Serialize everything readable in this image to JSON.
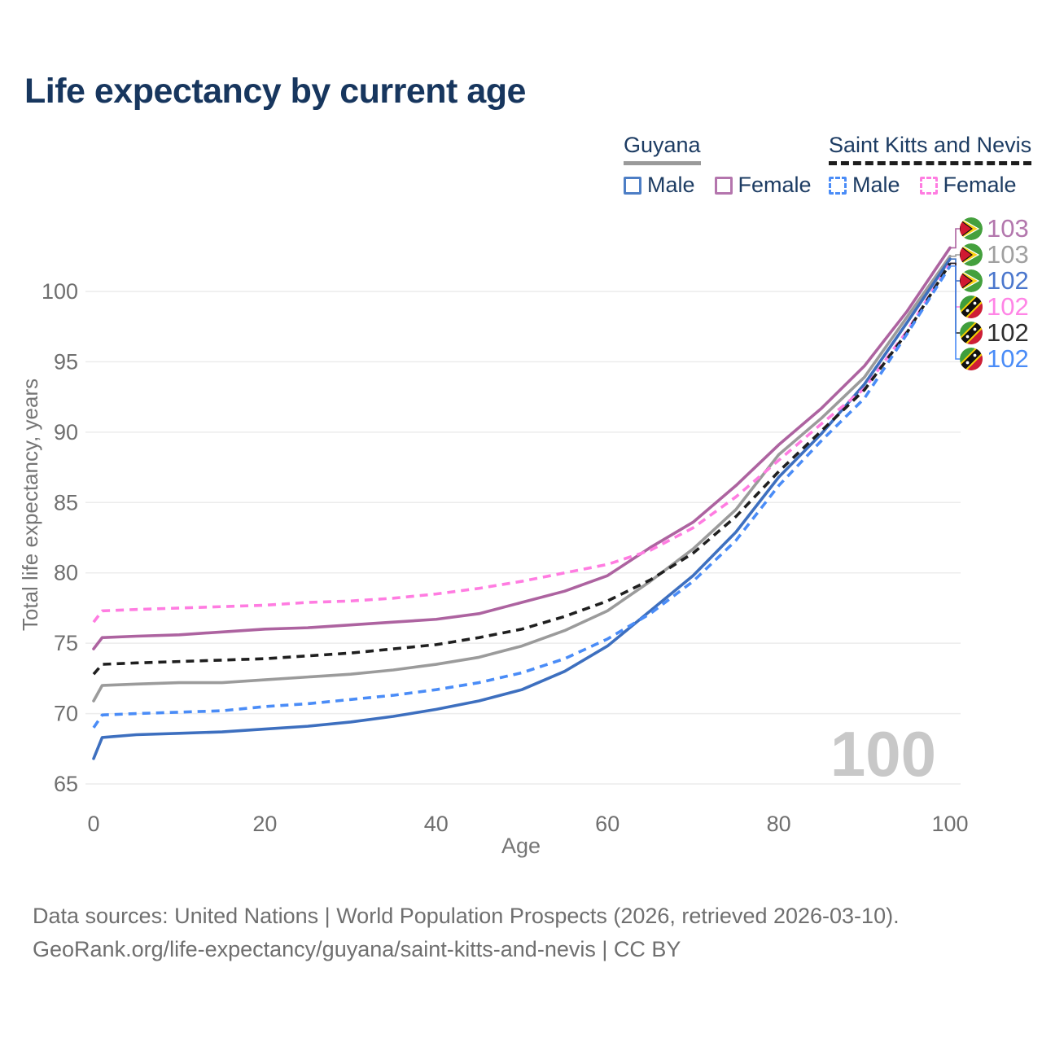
{
  "title": "Life expectancy by current age",
  "watermark": "100",
  "legend": {
    "groups": [
      {
        "label": "Guyana",
        "line_style": "solid",
        "underline_color": "#9a9a9a",
        "items": [
          {
            "label": "Male",
            "color": "#4d7ec5",
            "dash": false
          },
          {
            "label": "Female",
            "color": "#b475ad",
            "dash": false
          }
        ]
      },
      {
        "label": "Saint Kitts and Nevis",
        "line_style": "dashed",
        "underline_color": "#1d1d1d",
        "items": [
          {
            "label": "Male",
            "color": "#4a8cf7",
            "dash": true
          },
          {
            "label": "Female",
            "color": "#ff7ce1",
            "dash": true
          }
        ]
      }
    ]
  },
  "chart_data": {
    "type": "line",
    "title": "Life expectancy by current age",
    "xlabel": "Age",
    "ylabel": "Total life expectancy, years",
    "x_ticks": [
      0,
      20,
      40,
      60,
      80,
      100
    ],
    "y_ticks": [
      65,
      70,
      75,
      80,
      85,
      90,
      95,
      100
    ],
    "xlim": [
      0,
      100
    ],
    "ylim": [
      65,
      103.5
    ],
    "grid": "horizontal",
    "legend_position": "top-right",
    "x": [
      0,
      1,
      5,
      10,
      15,
      20,
      25,
      30,
      35,
      40,
      45,
      50,
      55,
      60,
      65,
      70,
      75,
      80,
      85,
      90,
      95,
      100
    ],
    "series": [
      {
        "name": "Guyana Female",
        "country": "Guyana",
        "sex": "female",
        "color": "#ad63a0",
        "dash": false,
        "flag": "guyana",
        "end_label": "103",
        "end_label_color": "#b377ad",
        "values": [
          74.6,
          75.4,
          75.5,
          75.6,
          75.8,
          76.0,
          76.1,
          76.3,
          76.5,
          76.7,
          77.1,
          77.9,
          78.7,
          79.8,
          81.8,
          83.6,
          86.2,
          89.1,
          91.7,
          94.7,
          98.6,
          103.1
        ]
      },
      {
        "name": "Guyana Total",
        "country": "Guyana",
        "sex": "total",
        "color": "#9b9b9b",
        "dash": false,
        "flag": "guyana",
        "end_label": "103",
        "end_label_color": "#a0a0a0",
        "values": [
          70.9,
          72.0,
          72.1,
          72.2,
          72.2,
          72.4,
          72.6,
          72.8,
          73.1,
          73.5,
          74.0,
          74.8,
          75.9,
          77.3,
          79.4,
          81.7,
          84.5,
          88.4,
          91.0,
          93.9,
          98.2,
          102.5
        ]
      },
      {
        "name": "Guyana Male",
        "country": "Guyana",
        "sex": "male",
        "color": "#3d6fbf",
        "dash": false,
        "flag": "guyana",
        "end_label": "102",
        "end_label_color": "#4b77cd",
        "values": [
          66.8,
          68.3,
          68.5,
          68.6,
          68.7,
          68.9,
          69.1,
          69.4,
          69.8,
          70.3,
          70.9,
          71.7,
          73.0,
          74.8,
          77.3,
          79.8,
          82.9,
          86.8,
          89.9,
          93.4,
          97.8,
          102.3
        ]
      },
      {
        "name": "Saint Kitts and Nevis Female",
        "country": "Saint Kitts and Nevis",
        "sex": "female",
        "color": "#ff7ce1",
        "dash": true,
        "flag": "saint-kitts-and-nevis",
        "end_label": "102",
        "end_label_color": "#ff85e6",
        "values": [
          76.5,
          77.3,
          77.4,
          77.5,
          77.6,
          77.7,
          77.9,
          78.0,
          78.2,
          78.5,
          78.9,
          79.4,
          80.0,
          80.6,
          81.6,
          83.2,
          85.4,
          88.0,
          90.6,
          93.1,
          97.2,
          102.0
        ]
      },
      {
        "name": "Saint Kitts and Nevis Total",
        "country": "Saint Kitts and Nevis",
        "sex": "total",
        "color": "#1f1f1f",
        "dash": true,
        "flag": "saint-kitts-and-nevis",
        "end_label": "102",
        "end_label_color": "#2e2e2e",
        "values": [
          72.8,
          73.5,
          73.6,
          73.7,
          73.8,
          73.9,
          74.1,
          74.3,
          74.6,
          74.9,
          75.4,
          76.0,
          76.9,
          78.0,
          79.5,
          81.4,
          84.0,
          87.2,
          90.1,
          93.0,
          97.1,
          102.0
        ]
      },
      {
        "name": "Saint Kitts and Nevis Male",
        "country": "Saint Kitts and Nevis",
        "sex": "male",
        "color": "#4a8cf7",
        "dash": true,
        "flag": "saint-kitts-and-nevis",
        "end_label": "102",
        "end_label_color": "#4a8cf7",
        "values": [
          69.0,
          69.9,
          70.0,
          70.1,
          70.2,
          70.5,
          70.7,
          71.0,
          71.3,
          71.7,
          72.2,
          72.9,
          73.9,
          75.3,
          77.1,
          79.4,
          82.3,
          86.2,
          89.4,
          92.4,
          97.0,
          101.8
        ]
      }
    ]
  },
  "footer": {
    "line1": "Data sources: United Nations | World Population Prospects (2026, retrieved 2026-03-10).",
    "line2": "GeoRank.org/life-expectancy/guyana/saint-kitts-and-nevis | CC BY"
  }
}
